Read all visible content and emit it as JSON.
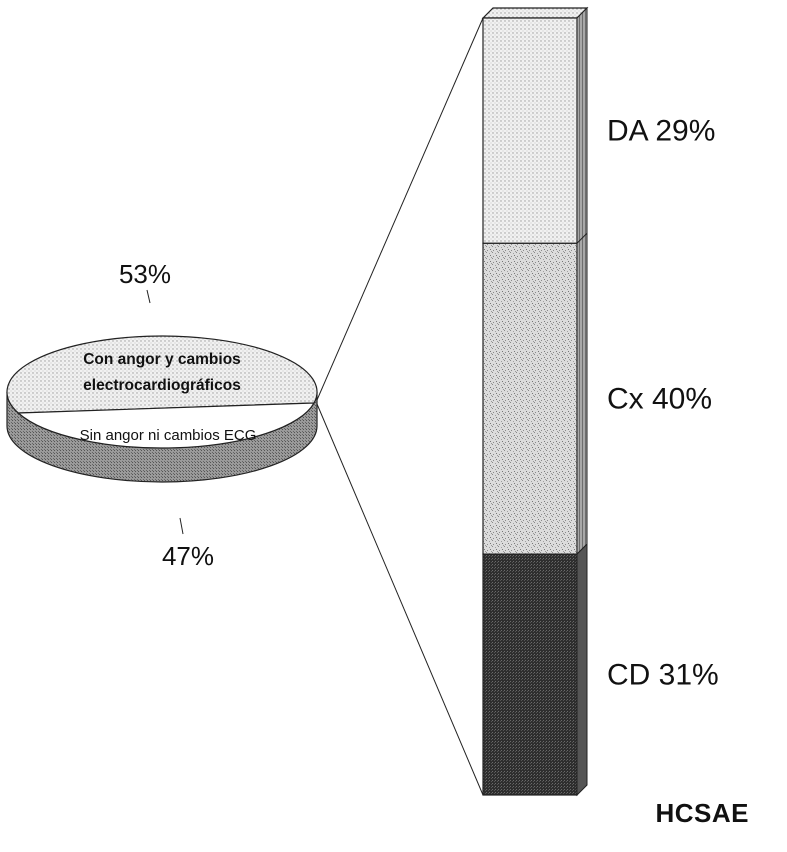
{
  "credit": "HCSAE",
  "chart_data": [
    {
      "type": "pie",
      "slices": [
        {
          "label": "Con angor y cambios electrocardiográficos",
          "label_lines": [
            "Con angor y cambios",
            "electrocardiográficos"
          ],
          "value": 53,
          "value_label": "53%",
          "color": "#d9d9d9"
        },
        {
          "label": "Sin angor ni cambios ECG",
          "label_lines": [
            "Sin angor ni cambios ECG"
          ],
          "value": 47,
          "value_label": "47%",
          "color": "#ffffff"
        }
      ],
      "exploded_slice": 0,
      "three_d": true
    },
    {
      "type": "bar",
      "stacked": true,
      "orientation": "vertical",
      "series": [
        {
          "name": "DA",
          "value": 29,
          "value_label": "DA  29%",
          "color": "#e3e3e3"
        },
        {
          "name": "Cx",
          "value": 40,
          "value_label": "Cx  40%",
          "color": "#cfcfcf"
        },
        {
          "name": "CD",
          "value": 31,
          "value_label": "CD  31%",
          "color": "#333333"
        }
      ],
      "total": 100
    }
  ]
}
